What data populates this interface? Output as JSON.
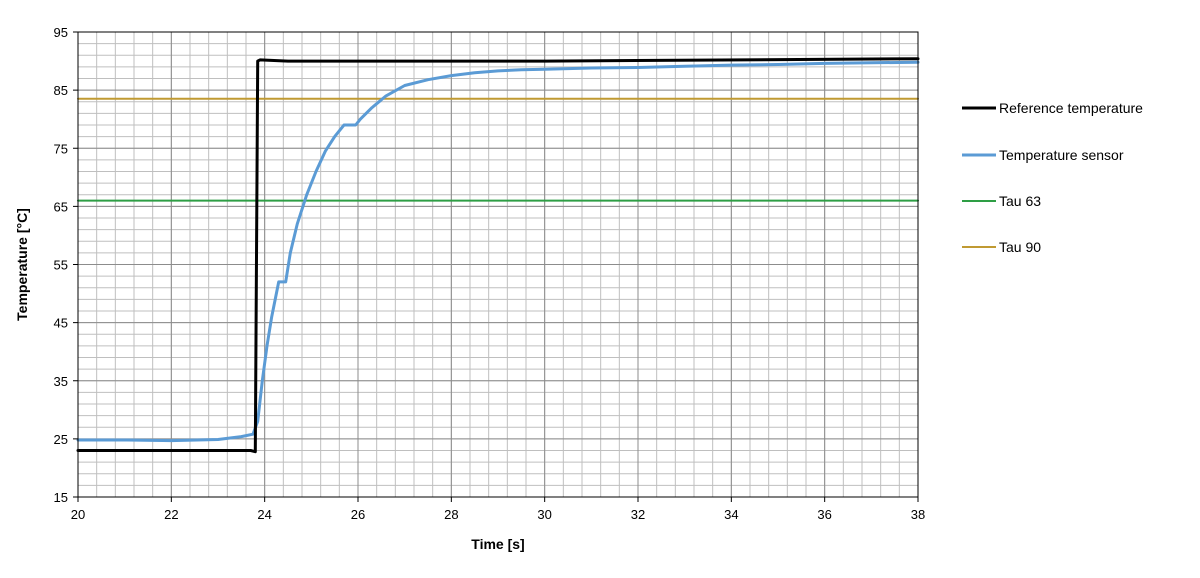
{
  "chart_data": {
    "type": "line",
    "xlabel": "Time [s]",
    "ylabel": "Temperature [°C]",
    "xlim": [
      20,
      38
    ],
    "ylim": [
      15,
      95
    ],
    "x_ticks": [
      20,
      22,
      24,
      26,
      28,
      30,
      32,
      34,
      36,
      38
    ],
    "y_ticks": [
      15,
      25,
      35,
      45,
      55,
      65,
      75,
      85,
      95
    ],
    "grid": true,
    "minor_grid_x_step": 0.4,
    "minor_grid_y_step": 2,
    "legend_position": "right",
    "series": [
      {
        "name": "Reference temperature",
        "color": "#000000",
        "x": [
          20,
          23.7,
          23.8,
          23.85,
          23.9,
          24.5,
          30,
          38
        ],
        "y": [
          23,
          23,
          22.8,
          90,
          90.2,
          90,
          90,
          90.4
        ]
      },
      {
        "name": "Temperature sensor",
        "color": "#5B9BD5",
        "x": [
          20,
          21,
          22,
          23,
          23.5,
          23.75,
          23.85,
          23.95,
          24.05,
          24.15,
          24.3,
          24.45,
          24.55,
          24.7,
          24.9,
          25.1,
          25.3,
          25.5,
          25.7,
          25.95,
          26.05,
          26.3,
          26.6,
          27,
          27.5,
          28,
          28.5,
          29,
          29.5,
          30,
          31,
          32,
          33,
          34,
          35,
          36,
          37,
          38
        ],
        "y": [
          24.8,
          24.8,
          24.7,
          24.9,
          25.4,
          25.8,
          28,
          35,
          41,
          46,
          52,
          52,
          57,
          62,
          67,
          71,
          74.5,
          77,
          79,
          79,
          80,
          82,
          84,
          85.8,
          86.8,
          87.5,
          88,
          88.3,
          88.5,
          88.6,
          88.8,
          88.9,
          89.1,
          89.3,
          89.4,
          89.6,
          89.7,
          89.8
        ]
      },
      {
        "name": "Tau 63",
        "color": "#2E9E45",
        "x": [
          20,
          38
        ],
        "y": [
          66,
          66
        ]
      },
      {
        "name": "Tau 90",
        "color": "#C09A32",
        "x": [
          20,
          38
        ],
        "y": [
          83.5,
          83.5
        ]
      }
    ]
  }
}
